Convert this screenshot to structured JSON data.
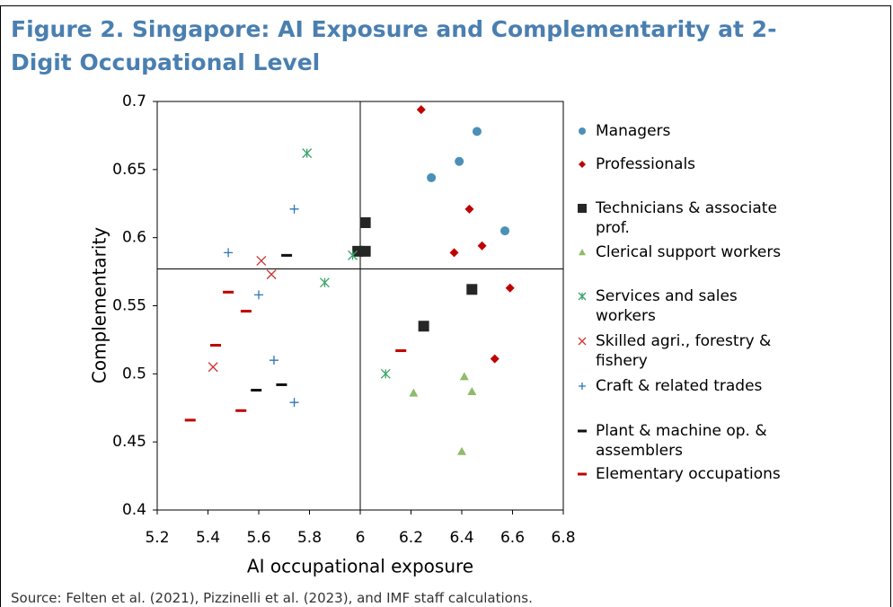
{
  "chart_data": {
    "type": "scatter",
    "title": "Figure 2. Singapore: AI Exposure and Complementarity at 2-Digit Occupational Level",
    "x_label": "AI occupational exposure",
    "y_label": "Complementarity",
    "source": "Source: Felten et al. (2021), Pizzinelli et al. (2023), and IMF staff calculations.",
    "xlim": [
      5.2,
      6.8
    ],
    "xticks": [
      5.2,
      5.4,
      5.6,
      5.8,
      6,
      6.2,
      6.4,
      6.6,
      6.8
    ],
    "ylim": [
      0.4,
      0.7
    ],
    "yticks": [
      0.4,
      0.45,
      0.5,
      0.55,
      0.6,
      0.65,
      0.7
    ],
    "reference_lines": {
      "x": 6,
      "y": 0.577
    },
    "legend": "right",
    "series": [
      {
        "name": "Managers",
        "color": "#4a90b8",
        "marker": "circle",
        "x": [
          6.46,
          6.39,
          6.28,
          6.57
        ],
        "values": [
          0.678,
          0.656,
          0.644,
          0.605
        ]
      },
      {
        "name": "Professionals",
        "color": "#c00000",
        "marker": "diamond",
        "x": [
          6.24,
          6.43,
          6.48,
          6.37,
          6.59,
          6.53
        ],
        "values": [
          0.694,
          0.621,
          0.594,
          0.589,
          0.563,
          0.511
        ]
      },
      {
        "name": "Technicians & associate prof.",
        "color": "#262626",
        "marker": "square",
        "x": [
          6.02,
          5.99,
          6.02,
          6.44,
          6.25
        ],
        "values": [
          0.611,
          0.59,
          0.59,
          0.562,
          0.535
        ]
      },
      {
        "name": "Clerical support workers",
        "color": "#8fbc6a",
        "marker": "triangle",
        "x": [
          6.41,
          6.44,
          6.21,
          6.4
        ],
        "values": [
          0.498,
          0.487,
          0.486,
          0.443
        ]
      },
      {
        "name": "Services and sales workers",
        "color": "#3aa36a",
        "marker": "asterisk",
        "x": [
          5.79,
          5.97,
          5.86,
          6.1
        ],
        "values": [
          0.662,
          0.587,
          0.567,
          0.5
        ]
      },
      {
        "name": "Skilled agri., forestry & fishery",
        "color": "#d03030",
        "marker": "x",
        "x": [
          5.61,
          5.65,
          5.42
        ],
        "values": [
          0.583,
          0.573,
          0.505
        ]
      },
      {
        "name": "Craft & related trades",
        "color": "#2e75b6",
        "marker": "plus",
        "x": [
          5.74,
          5.48,
          5.6,
          5.66,
          5.74
        ],
        "values": [
          0.621,
          0.589,
          0.558,
          0.51,
          0.479
        ]
      },
      {
        "name": "Plant & machine op. & assemblers",
        "color": "#111111",
        "marker": "dash",
        "x": [
          5.71,
          5.59,
          5.69
        ],
        "values": [
          0.587,
          0.488,
          0.492
        ]
      },
      {
        "name": "Elementary occupations",
        "color": "#c00000",
        "marker": "dash",
        "x": [
          5.48,
          5.55,
          5.43,
          6.16,
          5.53,
          5.33
        ],
        "values": [
          0.56,
          0.546,
          0.521,
          0.517,
          0.473,
          0.466
        ]
      }
    ]
  }
}
